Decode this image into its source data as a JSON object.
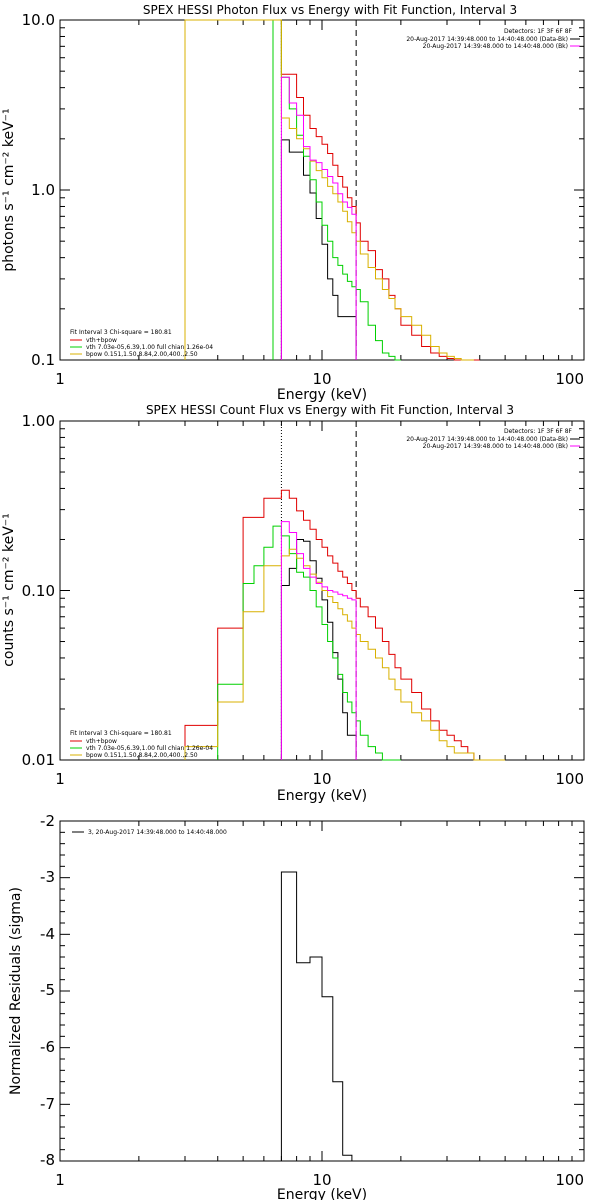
{
  "colors": {
    "data_black": "#000000",
    "total_red": "#e00000",
    "vth_green": "#00d000",
    "bpow_yellow": "#d8b000",
    "bk_magenta": "#ff00ff",
    "vline_blue": "#0000ff"
  },
  "chart_data": [
    {
      "type": "line",
      "title": "SPEX HESSI Photon Flux vs Energy with Fit Function, Interval 3",
      "xlabel": "Energy (keV)",
      "ylabel": "photons s⁻¹ cm⁻² keV⁻¹",
      "xscale": "log",
      "yscale": "log",
      "xlim": [
        1,
        100
      ],
      "ylim": [
        0.1,
        10
      ],
      "xticklabels": [
        "1",
        "10",
        "100"
      ],
      "yticklabels": [
        "0.1",
        "1.0",
        "10.0"
      ],
      "vlines": [
        7.0,
        13.5
      ],
      "header": [
        "Detectors: 1F 3F 6F 8F",
        "20-Aug-2017 14:39:48.000 to 14:40:48.000 (Data-Bk)",
        "20-Aug-2017 14:39:48.000 to 14:40:48.000 (Bk)"
      ],
      "legend": [
        "Fit Interval 3   Chi-square = 180.81",
        "vth+bpow",
        "vth 7.03e-05,6.39,1.00  full chian 1.26e-04",
        "bpow 0.151,1.50,8.84,2.00,400.,2.50"
      ],
      "series": [
        {
          "name": "Data-Bk",
          "edges": [
            7.0,
            7.5,
            8.0,
            8.5,
            9.0,
            9.5,
            10.0,
            10.5,
            11.0,
            11.5,
            12.0,
            12.5,
            13.0,
            13.5
          ],
          "values": [
            1.97,
            1.67,
            1.67,
            1.22,
            0.96,
            0.68,
            0.48,
            0.3,
            0.24,
            0.18,
            0.18,
            0.18,
            0.18
          ]
        },
        {
          "name": "vth+bpow",
          "edges": [
            3.0,
            3.5,
            4.0,
            4.5,
            5.0,
            5.5,
            6.0,
            6.5,
            7.0,
            7.5,
            8.0,
            8.5,
            9.0,
            9.5,
            10.0,
            10.5,
            11.0,
            11.5,
            12.0,
            12.5,
            13.0,
            13.5,
            14.0,
            15.0,
            16.0,
            17.0,
            18.0,
            19.0,
            20.0,
            22.0,
            24.0,
            26.0,
            28.0,
            30.0,
            32.0,
            34.0,
            36.0,
            38.0,
            40.0
          ],
          "values": [
            10,
            10,
            10,
            10,
            10,
            10,
            10,
            10,
            4.8,
            4.8,
            3.5,
            2.75,
            2.3,
            2.06,
            1.86,
            1.64,
            1.4,
            1.2,
            1.04,
            0.9,
            0.8,
            0.64,
            0.5,
            0.44,
            0.34,
            0.3,
            0.24,
            0.2,
            0.16,
            0.14,
            0.12,
            0.11,
            0.105,
            0.102,
            0.1,
            0.1,
            0.1,
            0.1
          ]
        },
        {
          "name": "vth",
          "edges": [
            6.5,
            7.0,
            7.5,
            8.0,
            8.5,
            9.0,
            9.5,
            10.0,
            10.5,
            11.0,
            11.5,
            12.0,
            12.5,
            13.0,
            13.5,
            14.0,
            15.0,
            16.0,
            17.0,
            18.0,
            19.0,
            20.0
          ],
          "values": [
            10,
            4.6,
            3.0,
            2.1,
            1.58,
            1.15,
            0.85,
            0.62,
            0.5,
            0.4,
            0.36,
            0.32,
            0.29,
            0.27,
            0.26,
            0.22,
            0.16,
            0.13,
            0.11,
            0.105,
            0.1
          ]
        },
        {
          "name": "bpow",
          "edges": [
            3.0,
            3.5,
            4.0,
            4.5,
            5.0,
            5.5,
            6.0,
            6.5,
            7.0,
            7.5,
            8.0,
            8.5,
            9.0,
            9.5,
            10.0,
            10.5,
            11.0,
            11.5,
            12.0,
            12.5,
            13.0,
            13.5,
            14.0,
            15.0,
            16.0,
            17.0,
            18.0,
            19.0,
            20.0,
            22.0,
            24.0,
            26.0,
            28.0,
            30.0,
            32.0,
            34.0,
            36.0,
            38.0
          ],
          "values": [
            10,
            10,
            10,
            10,
            10,
            10,
            10,
            10,
            2.65,
            2.3,
            2.0,
            1.75,
            1.48,
            1.3,
            1.18,
            1.05,
            0.95,
            0.85,
            0.75,
            0.65,
            0.56,
            0.5,
            0.42,
            0.35,
            0.3,
            0.26,
            0.23,
            0.2,
            0.18,
            0.16,
            0.14,
            0.12,
            0.11,
            0.105,
            0.102,
            0.1,
            0.1
          ]
        },
        {
          "name": "Bk",
          "edges": [
            7.0,
            7.5,
            8.0,
            8.5,
            9.0,
            9.5,
            10.0,
            10.5,
            11.0,
            11.5,
            12.0,
            12.5,
            13.0,
            13.5
          ],
          "values": [
            4.6,
            3.25,
            2.75,
            1.8,
            1.5,
            1.45,
            1.32,
            1.2,
            1.1,
            0.95,
            0.85,
            0.79,
            0.72
          ]
        }
      ]
    },
    {
      "type": "line",
      "title": "SPEX HESSI Count Flux vs Energy with Fit Function, Interval 3",
      "xlabel": "Energy (keV)",
      "ylabel": "counts s⁻¹ cm⁻² keV⁻¹",
      "xscale": "log",
      "yscale": "log",
      "xlim": [
        1,
        100
      ],
      "ylim": [
        0.01,
        1.0
      ],
      "xticklabels": [
        "1",
        "10",
        "100"
      ],
      "yticklabels": [
        "0.01",
        "0.10",
        "1.00"
      ],
      "vlines": [
        7.0,
        13.5
      ],
      "header": [
        "Detectors: 1F 3F 6F 8F",
        "20-Aug-2017 14:39:48.000 to 14:40:48.000 (Data-Bk)",
        "20-Aug-2017 14:39:48.000 to 14:40:48.000 (Bk)"
      ],
      "legend": [
        "Fit Interval 3   Chi-square = 180.81",
        "vth+bpow",
        "vth 7.03e-05,6.39,1.00  full chian 1.26e-04",
        "bpow 0.151,1.50,8.84,2.00,400.,2.50"
      ],
      "series": [
        {
          "name": "Data-Bk",
          "edges": [
            7.0,
            7.5,
            8.0,
            8.5,
            9.0,
            9.5,
            10.0,
            10.5,
            11.0,
            11.5,
            12.0,
            12.5,
            13.0,
            13.5
          ],
          "values": [
            0.107,
            0.135,
            0.2,
            0.195,
            0.15,
            0.118,
            0.088,
            0.065,
            0.043,
            0.03,
            0.019,
            0.014,
            0.014
          ]
        },
        {
          "name": "vth+bpow",
          "edges": [
            3.0,
            4.0,
            5.0,
            6.0,
            7.0,
            7.5,
            8.0,
            8.5,
            9.0,
            9.5,
            10.0,
            10.5,
            11.0,
            11.5,
            12.0,
            12.5,
            13.0,
            13.5,
            14.0,
            15.0,
            16.0,
            17.0,
            18.0,
            19.0,
            20.0,
            22.0,
            24.0,
            26.0,
            28.0,
            30.0,
            32.0,
            34.0,
            36.0,
            38.0,
            40.0,
            44.0
          ],
          "values": [
            0.016,
            0.06,
            0.27,
            0.35,
            0.39,
            0.35,
            0.295,
            0.26,
            0.23,
            0.2,
            0.18,
            0.16,
            0.145,
            0.13,
            0.12,
            0.11,
            0.1,
            0.09,
            0.08,
            0.07,
            0.06,
            0.05,
            0.042,
            0.035,
            0.03,
            0.025,
            0.02,
            0.017,
            0.015,
            0.014,
            0.013,
            0.012,
            0.011,
            0.01,
            0.01
          ]
        },
        {
          "name": "vth",
          "edges": [
            4.0,
            5.0,
            5.5,
            6.0,
            6.5,
            7.0,
            7.5,
            8.0,
            8.5,
            9.0,
            9.5,
            10.0,
            10.5,
            11.0,
            11.5,
            12.0,
            12.5,
            13.0,
            13.5,
            14.0,
            15.0,
            16.0,
            17.0,
            18.0,
            19.0,
            20.0
          ],
          "values": [
            0.028,
            0.11,
            0.14,
            0.18,
            0.24,
            0.21,
            0.165,
            0.128,
            0.12,
            0.1,
            0.08,
            0.063,
            0.05,
            0.04,
            0.032,
            0.025,
            0.022,
            0.019,
            0.017,
            0.014,
            0.012,
            0.011,
            0.01,
            0.01,
            0.01
          ]
        },
        {
          "name": "bpow",
          "edges": [
            3.0,
            4.0,
            5.0,
            6.0,
            7.0,
            7.5,
            8.0,
            8.5,
            9.0,
            9.5,
            10.0,
            10.5,
            11.0,
            11.5,
            12.0,
            12.5,
            13.0,
            13.5,
            14.0,
            15.0,
            16.0,
            17.0,
            18.0,
            19.0,
            20.0,
            22.0,
            24.0,
            26.0,
            28.0,
            30.0,
            32.0,
            34.0,
            36.0,
            38.0,
            40.0,
            44.0,
            50.0
          ],
          "values": [
            0.012,
            0.022,
            0.075,
            0.14,
            0.16,
            0.175,
            0.155,
            0.14,
            0.125,
            0.112,
            0.1,
            0.092,
            0.085,
            0.078,
            0.072,
            0.066,
            0.06,
            0.055,
            0.05,
            0.045,
            0.04,
            0.035,
            0.03,
            0.026,
            0.022,
            0.019,
            0.017,
            0.015,
            0.013,
            0.012,
            0.011,
            0.011,
            0.011,
            0.01,
            0.01,
            0.01
          ]
        },
        {
          "name": "Bk",
          "edges": [
            7.0,
            7.5,
            8.0,
            8.5,
            9.0,
            9.5,
            10.0,
            10.5,
            11.0,
            11.5,
            12.0,
            12.5,
            13.0,
            13.5
          ],
          "values": [
            0.255,
            0.22,
            0.165,
            0.135,
            0.12,
            0.11,
            0.105,
            0.1,
            0.098,
            0.095,
            0.093,
            0.09,
            0.088
          ]
        }
      ]
    },
    {
      "type": "line",
      "title": "",
      "xlabel": "Energy (keV)",
      "ylabel": "Normalized Residuals (sigma)",
      "xscale": "log",
      "yscale": "linear",
      "xlim": [
        1,
        100
      ],
      "ylim": [
        -8,
        -2
      ],
      "xticklabels": [
        "1",
        "10",
        "100"
      ],
      "yticklabels": [
        "-8",
        "-7",
        "-6",
        "-5",
        "-4",
        "-3",
        "-2"
      ],
      "legend": [
        "3, 20-Aug-2017 14:39:48.000 to 14:40:48.000"
      ],
      "series": [
        {
          "name": "3, 20-Aug-2017 14:39:48.000 to 14:40:48.000",
          "edges": [
            7.0,
            7.5,
            8.0,
            8.5,
            9.0,
            9.5,
            10.0,
            10.5,
            11.0,
            11.5,
            12.0,
            12.5,
            13.0,
            13.5
          ],
          "values": [
            -2.9,
            -2.9,
            -4.5,
            -4.5,
            -4.4,
            -4.4,
            -5.1,
            -5.1,
            -6.6,
            -6.6,
            -7.9,
            -7.9,
            -8.0
          ]
        }
      ]
    }
  ]
}
